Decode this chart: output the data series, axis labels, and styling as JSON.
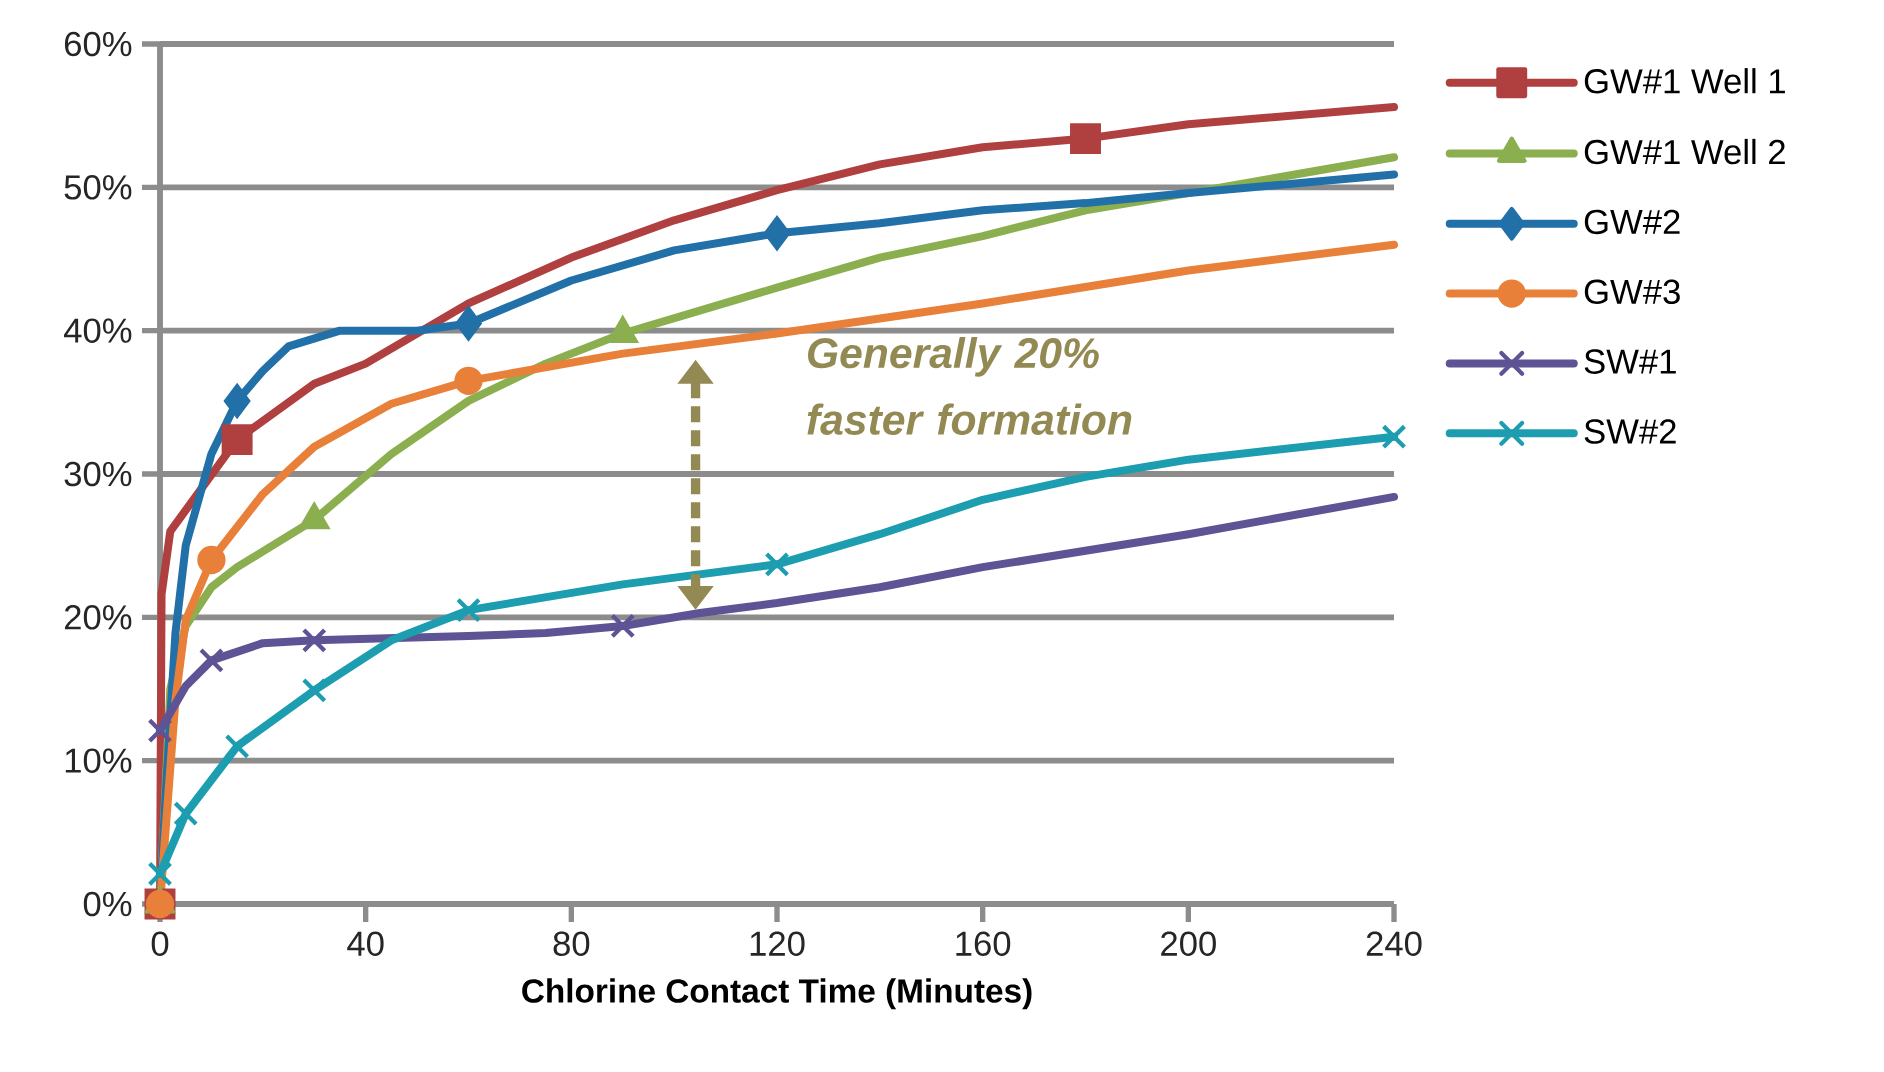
{
  "chart_data": {
    "type": "line",
    "xlabel": "Chlorine Contact Time (Minutes)",
    "xlim": [
      0,
      240
    ],
    "xticks": [
      0,
      40,
      80,
      120,
      160,
      200,
      240
    ],
    "ylim": [
      0,
      60
    ],
    "yticks": [
      {
        "value": 0,
        "label": "0%"
      },
      {
        "value": 10,
        "label": "10%"
      },
      {
        "value": 20,
        "label": "20%"
      },
      {
        "value": 30,
        "label": "30%"
      },
      {
        "value": 40,
        "label": "40%"
      },
      {
        "value": 50,
        "label": "50%"
      },
      {
        "value": 60,
        "label": "60%"
      }
    ],
    "grid": "y",
    "legend": "right",
    "line_style": "solid",
    "annotations": [
      "Generally  20% faster formation"
    ],
    "series": [
      {
        "name": "GW#1 Well 1",
        "color": "#b04040",
        "x": [
          0,
          0.3,
          2,
          15,
          30,
          40,
          60,
          80,
          100,
          120,
          140,
          160,
          180,
          200,
          240
        ],
        "values": [
          0,
          21.6,
          26,
          32.4,
          36.3,
          37.7,
          41.9,
          45.1,
          47.7,
          49.8,
          51.6,
          52.8,
          53.4,
          54.4,
          55.6
        ]
      },
      {
        "name": "GW#1 Well 2",
        "color": "#8bae4f",
        "x": [
          0,
          2,
          5,
          10,
          15,
          30,
          45,
          60,
          75,
          90,
          120,
          140,
          160,
          180,
          200,
          240
        ],
        "values": [
          0,
          15,
          19.4,
          22.1,
          23.5,
          26.8,
          31.4,
          35.1,
          37.7,
          39.8,
          43,
          45.1,
          46.6,
          48.4,
          49.6,
          52.1
        ]
      },
      {
        "name": "GW#2",
        "color": "#2270a8",
        "x": [
          0,
          1,
          3,
          5,
          10,
          15,
          20,
          25,
          35,
          50,
          60,
          80,
          100,
          120,
          140,
          160,
          180,
          200,
          240
        ],
        "values": [
          0,
          7,
          18.9,
          25,
          31.4,
          35.1,
          37.2,
          38.9,
          40,
          40,
          40.5,
          43.5,
          45.6,
          46.8,
          47.5,
          48.4,
          48.9,
          49.6,
          50.9
        ]
      },
      {
        "name": "GW#3",
        "color": "#e8803a",
        "x": [
          0,
          3,
          5,
          10,
          20,
          30,
          45,
          60,
          90,
          120,
          160,
          200,
          240
        ],
        "values": [
          0,
          14.2,
          19.8,
          24,
          28.6,
          31.9,
          34.9,
          36.5,
          38.4,
          39.8,
          41.9,
          44.2,
          46
        ]
      },
      {
        "name": "SW#1",
        "color": "#5e5394",
        "x": [
          0,
          5,
          10,
          20,
          30,
          60,
          75,
          90,
          105,
          120,
          140,
          160,
          200,
          240
        ],
        "values": [
          12.1,
          15.2,
          17,
          18.2,
          18.4,
          18.7,
          18.9,
          19.4,
          20.3,
          21,
          22.1,
          23.5,
          25.8,
          28.4
        ]
      },
      {
        "name": "SW#2",
        "color": "#1c9db0",
        "x": [
          0,
          5,
          15,
          30,
          45,
          60,
          90,
          120,
          140,
          160,
          180,
          200,
          240
        ],
        "values": [
          2.1,
          6.3,
          11,
          14.9,
          18.4,
          20.5,
          22.3,
          23.7,
          25.8,
          28.2,
          29.8,
          31,
          32.6
        ]
      },
      {
        "color": "#b04040",
        "type": "scatter",
        "marker": "square",
        "x": [
          0,
          15,
          180
        ],
        "values": [
          0,
          32.4,
          53.4
        ]
      },
      {
        "color": "#8bae4f",
        "type": "scatter",
        "marker": "triangle",
        "x": [
          0,
          30,
          90
        ],
        "values": [
          0,
          26.8,
          39.8
        ]
      },
      {
        "color": "#2270a8",
        "type": "scatter",
        "marker": "diamond",
        "x": [
          15,
          60,
          120
        ],
        "values": [
          35.1,
          40.5,
          46.8
        ]
      },
      {
        "color": "#e8803a",
        "type": "scatter",
        "marker": "circle",
        "x": [
          0,
          10,
          60
        ],
        "values": [
          0,
          24,
          36.5
        ]
      },
      {
        "color": "#5e5394",
        "type": "scatter",
        "marker": "cross",
        "x": [
          0,
          10,
          30,
          90
        ],
        "values": [
          12.1,
          17,
          18.4,
          19.4
        ]
      },
      {
        "color": "#1c9db0",
        "type": "scatter",
        "marker": "cross",
        "x": [
          0,
          5,
          15,
          30,
          60,
          120,
          240
        ],
        "values": [
          2.1,
          6.3,
          11,
          14.9,
          20.5,
          23.7,
          32.6
        ]
      }
    ]
  }
}
